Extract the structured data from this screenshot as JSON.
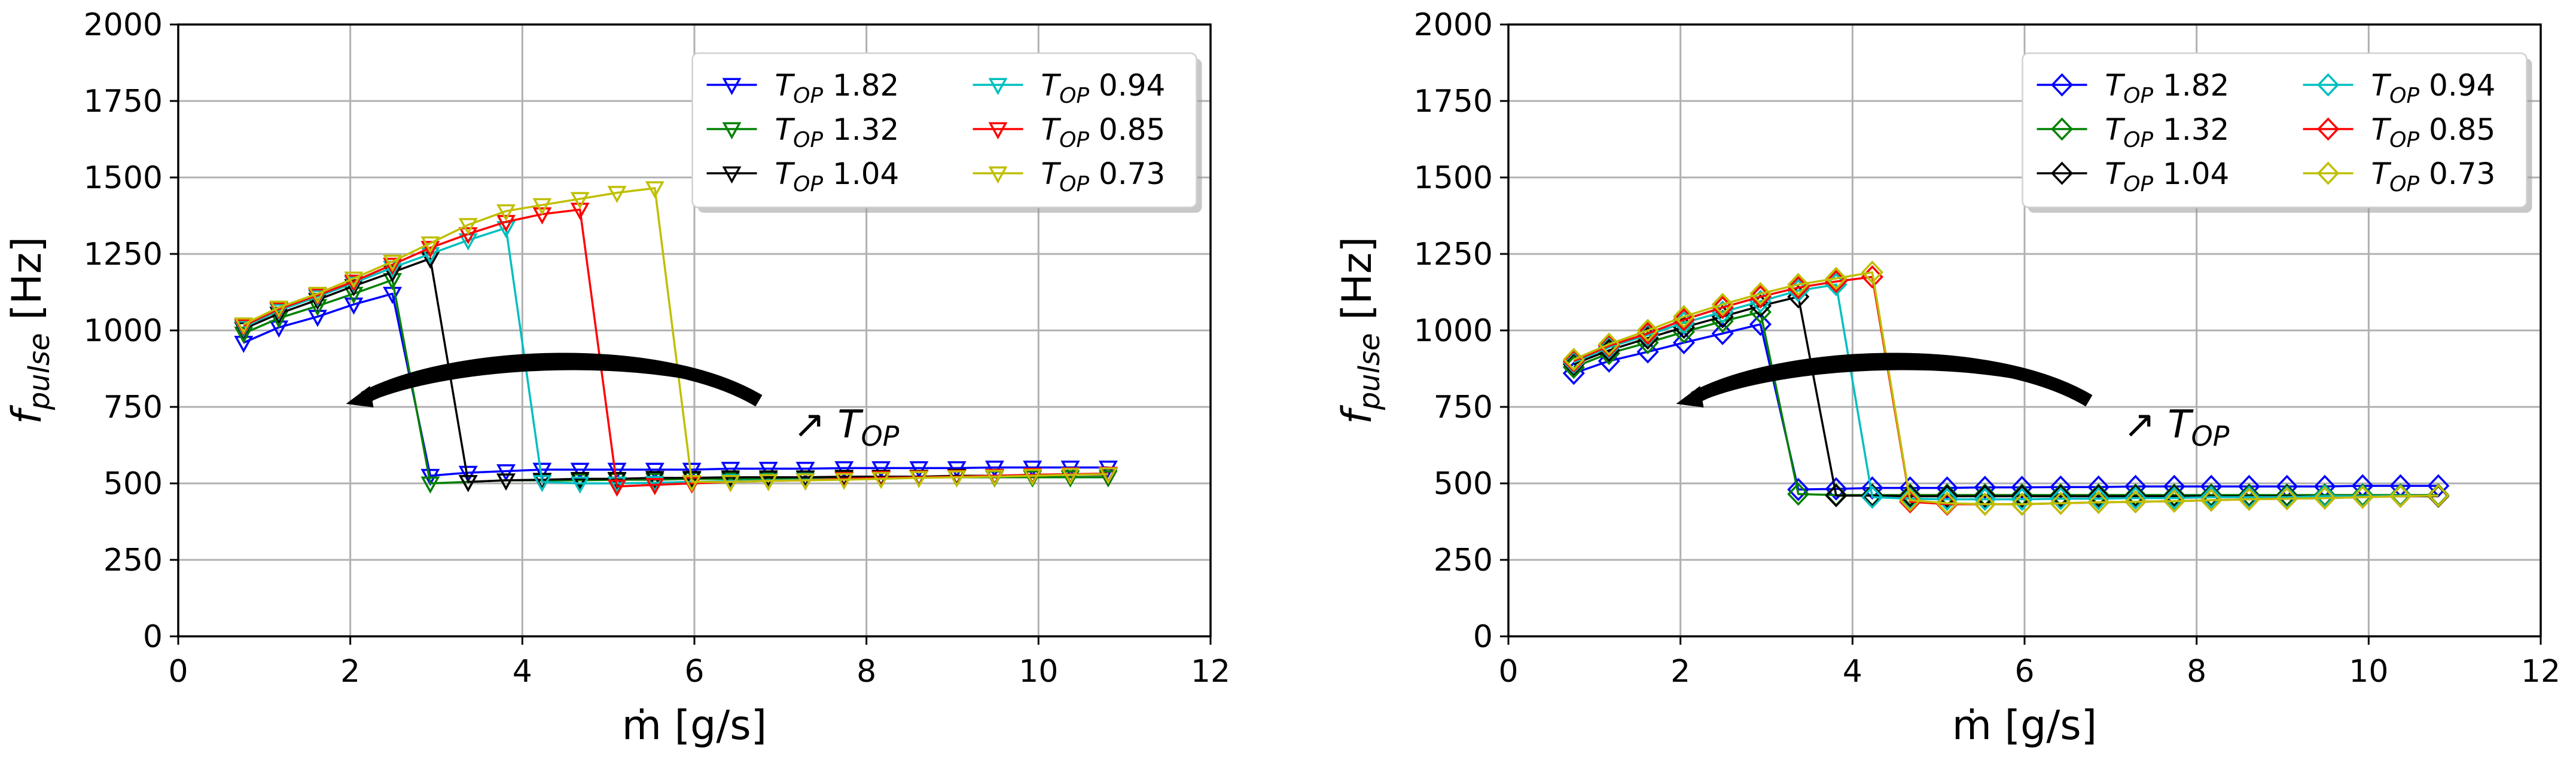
{
  "colors": {
    "series": [
      "#0000ff",
      "#008000",
      "#000000",
      "#00bfbf",
      "#ff0000",
      "#bfbf00"
    ],
    "grid": "#b0b0b0",
    "axis": "#000000",
    "arrow": "#000000"
  },
  "chart_data": [
    {
      "type": "line",
      "marker": "triangle-down",
      "title": "",
      "xlabel": "ṁ [g/s]",
      "ylabel_main": "f",
      "ylabel_sub": "pulse",
      "ylabel_unit": " [Hz]",
      "xlim": [
        0,
        12
      ],
      "ylim": [
        0,
        2000
      ],
      "xticks": [
        "0",
        "2",
        "4",
        "6",
        "8",
        "10",
        "12"
      ],
      "yticks": [
        "0",
        "250",
        "500",
        "750",
        "1000",
        "1250",
        "1500",
        "1750",
        "2000"
      ],
      "grid": true,
      "legend_position": "top-right",
      "annotation": {
        "prefix": "↗ ",
        "main": "T",
        "sub": "OP"
      },
      "series": [
        {
          "name_main": "T",
          "name_sub": "OP",
          "name_value": " 1.82",
          "x": [
            0.76,
            1.17,
            1.62,
            2.04,
            2.49,
            2.93,
            3.37,
            3.81,
            4.23,
            4.67,
            5.1,
            5.54,
            5.97,
            6.42,
            6.86,
            7.29,
            7.74,
            8.17,
            8.61,
            9.05,
            9.49,
            9.93,
            10.37,
            10.81
          ],
          "y": [
            960,
            1010,
            1045,
            1085,
            1120,
            525,
            535,
            540,
            545,
            545,
            545,
            545,
            545,
            548,
            548,
            548,
            550,
            550,
            550,
            550,
            552,
            552,
            552,
            552
          ]
        },
        {
          "name_main": "T",
          "name_sub": "OP",
          "name_value": " 1.32",
          "x": [
            0.76,
            1.17,
            1.62,
            2.04,
            2.49,
            2.93,
            3.37,
            3.81,
            4.23,
            4.67,
            5.1,
            5.54,
            5.97,
            6.42,
            6.86,
            7.29,
            7.74,
            8.17,
            8.61,
            9.05,
            9.49,
            9.93,
            10.37,
            10.81
          ],
          "y": [
            990,
            1040,
            1080,
            1120,
            1165,
            500,
            505,
            510,
            510,
            510,
            512,
            512,
            515,
            515,
            515,
            518,
            518,
            518,
            520,
            520,
            520,
            520,
            520,
            520
          ]
        },
        {
          "name_main": "T",
          "name_sub": "OP",
          "name_value": " 1.04",
          "x": [
            0.76,
            1.17,
            1.62,
            2.04,
            2.49,
            2.93,
            3.37,
            3.81,
            4.23,
            4.67,
            5.1,
            5.54,
            5.97,
            6.42,
            6.86,
            7.29,
            7.74,
            8.17,
            8.61,
            9.05,
            9.49,
            9.93,
            10.37,
            10.81
          ],
          "y": [
            1005,
            1055,
            1100,
            1145,
            1190,
            1235,
            505,
            510,
            512,
            515,
            515,
            518,
            518,
            520,
            520,
            520,
            522,
            522,
            522,
            525,
            525,
            525,
            528,
            528
          ]
        },
        {
          "name_main": "T",
          "name_sub": "OP",
          "name_value": " 0.94",
          "x": [
            0.76,
            1.17,
            1.62,
            2.04,
            2.49,
            2.93,
            3.37,
            3.81,
            4.23,
            4.67,
            5.1,
            5.54,
            5.97,
            6.42,
            6.86,
            7.29,
            7.74,
            8.17,
            8.61,
            9.05,
            9.49,
            9.93,
            10.37,
            10.81
          ],
          "y": [
            1010,
            1065,
            1110,
            1155,
            1205,
            1250,
            1295,
            1335,
            505,
            500,
            500,
            502,
            505,
            508,
            510,
            512,
            515,
            518,
            520,
            522,
            525,
            528,
            530,
            530
          ]
        },
        {
          "name_main": "T",
          "name_sub": "OP",
          "name_value": " 0.85",
          "x": [
            0.76,
            1.17,
            1.62,
            2.04,
            2.49,
            2.93,
            3.37,
            3.81,
            4.23,
            4.67,
            5.1,
            5.54,
            5.97,
            6.42,
            6.86,
            7.29,
            7.74,
            8.17,
            8.61,
            9.05,
            9.49,
            9.93,
            10.37,
            10.81
          ],
          "y": [
            1015,
            1070,
            1115,
            1160,
            1215,
            1270,
            1315,
            1355,
            1380,
            1395,
            490,
            495,
            500,
            505,
            508,
            510,
            515,
            518,
            520,
            522,
            525,
            528,
            530,
            532
          ]
        },
        {
          "name_main": "T",
          "name_sub": "OP",
          "name_value": " 0.73",
          "x": [
            0.76,
            1.17,
            1.62,
            2.04,
            2.49,
            2.93,
            3.37,
            3.81,
            4.23,
            4.67,
            5.1,
            5.54,
            5.97,
            6.42,
            6.86,
            7.29,
            7.74,
            8.17,
            8.61,
            9.05,
            9.49,
            9.93,
            10.37,
            10.81
          ],
          "y": [
            1020,
            1075,
            1120,
            1170,
            1225,
            1285,
            1345,
            1390,
            1410,
            1430,
            1450,
            1465,
            505,
            505,
            508,
            510,
            512,
            515,
            518,
            520,
            522,
            525,
            528,
            530
          ]
        }
      ]
    },
    {
      "type": "line",
      "marker": "diamond",
      "title": "",
      "xlabel": "ṁ [g/s]",
      "ylabel_main": "f",
      "ylabel_sub": "pulse",
      "ylabel_unit": " [Hz]",
      "xlim": [
        0,
        12
      ],
      "ylim": [
        0,
        2000
      ],
      "xticks": [
        "0",
        "2",
        "4",
        "6",
        "8",
        "10",
        "12"
      ],
      "yticks": [
        "0",
        "250",
        "500",
        "750",
        "1000",
        "1250",
        "1500",
        "1750",
        "2000"
      ],
      "grid": true,
      "legend_position": "top-right",
      "annotation": {
        "prefix": "↗ ",
        "main": "T",
        "sub": "OP"
      },
      "series": [
        {
          "name_main": "T",
          "name_sub": "OP",
          "name_value": " 1.82",
          "x": [
            0.76,
            1.17,
            1.62,
            2.04,
            2.49,
            2.93,
            3.37,
            3.81,
            4.23,
            4.67,
            5.1,
            5.54,
            5.97,
            6.42,
            6.86,
            7.29,
            7.74,
            8.17,
            8.61,
            9.05,
            9.49,
            9.93,
            10.37,
            10.81
          ],
          "y": [
            860,
            900,
            930,
            960,
            990,
            1020,
            480,
            482,
            485,
            485,
            485,
            487,
            487,
            488,
            488,
            490,
            490,
            490,
            490,
            490,
            490,
            492,
            492,
            492
          ]
        },
        {
          "name_main": "T",
          "name_sub": "OP",
          "name_value": " 1.32",
          "x": [
            0.76,
            1.17,
            1.62,
            2.04,
            2.49,
            2.93,
            3.37,
            3.81,
            4.23,
            4.67,
            5.1,
            5.54,
            5.97,
            6.42,
            6.86,
            7.29,
            7.74,
            8.17,
            8.61,
            9.05,
            9.49,
            9.93,
            10.37,
            10.81
          ],
          "y": [
            880,
            925,
            960,
            995,
            1030,
            1060,
            465,
            462,
            462,
            462,
            462,
            462,
            462,
            462,
            462,
            462,
            462,
            462,
            462,
            462,
            462,
            462,
            462,
            462
          ]
        },
        {
          "name_main": "T",
          "name_sub": "OP",
          "name_value": " 1.04",
          "x": [
            0.76,
            1.17,
            1.62,
            2.04,
            2.49,
            2.93,
            3.37,
            3.81,
            4.23,
            4.67,
            5.1,
            5.54,
            5.97,
            6.42,
            6.86,
            7.29,
            7.74,
            8.17,
            8.61,
            9.05,
            9.49,
            9.93,
            10.37,
            10.81
          ],
          "y": [
            890,
            935,
            975,
            1010,
            1045,
            1080,
            1110,
            460,
            460,
            458,
            458,
            458,
            458,
            458,
            458,
            458,
            458,
            458,
            458,
            458,
            458,
            458,
            458,
            458
          ]
        },
        {
          "name_main": "T",
          "name_sub": "OP",
          "name_value": " 0.94",
          "x": [
            0.76,
            1.17,
            1.62,
            2.04,
            2.49,
            2.93,
            3.37,
            3.81,
            4.23,
            4.67,
            5.1,
            5.54,
            5.97,
            6.42,
            6.86,
            7.29,
            7.74,
            8.17,
            8.61,
            9.05,
            9.49,
            9.93,
            10.37,
            10.81
          ],
          "y": [
            895,
            945,
            985,
            1025,
            1060,
            1095,
            1130,
            1150,
            455,
            450,
            448,
            448,
            448,
            450,
            450,
            452,
            452,
            455,
            455,
            455,
            458,
            458,
            460,
            460
          ]
        },
        {
          "name_main": "T",
          "name_sub": "OP",
          "name_value": " 0.85",
          "x": [
            0.76,
            1.17,
            1.62,
            2.04,
            2.49,
            2.93,
            3.37,
            3.81,
            4.23,
            4.67,
            5.1,
            5.54,
            5.97,
            6.42,
            6.86,
            7.29,
            7.74,
            8.17,
            8.61,
            9.05,
            9.49,
            9.93,
            10.37,
            10.81
          ],
          "y": [
            900,
            950,
            990,
            1035,
            1075,
            1110,
            1140,
            1160,
            1175,
            440,
            432,
            432,
            432,
            435,
            438,
            440,
            442,
            445,
            448,
            450,
            452,
            455,
            458,
            460
          ]
        },
        {
          "name_main": "T",
          "name_sub": "OP",
          "name_value": " 0.73",
          "x": [
            0.76,
            1.17,
            1.62,
            2.04,
            2.49,
            2.93,
            3.37,
            3.81,
            4.23,
            4.67,
            5.1,
            5.54,
            5.97,
            6.42,
            6.86,
            7.29,
            7.74,
            8.17,
            8.61,
            9.05,
            9.49,
            9.93,
            10.37,
            10.81
          ],
          "y": [
            905,
            955,
            1000,
            1045,
            1085,
            1120,
            1150,
            1170,
            1190,
            445,
            435,
            432,
            432,
            435,
            438,
            440,
            442,
            445,
            448,
            450,
            452,
            455,
            458,
            460
          ]
        }
      ]
    }
  ]
}
